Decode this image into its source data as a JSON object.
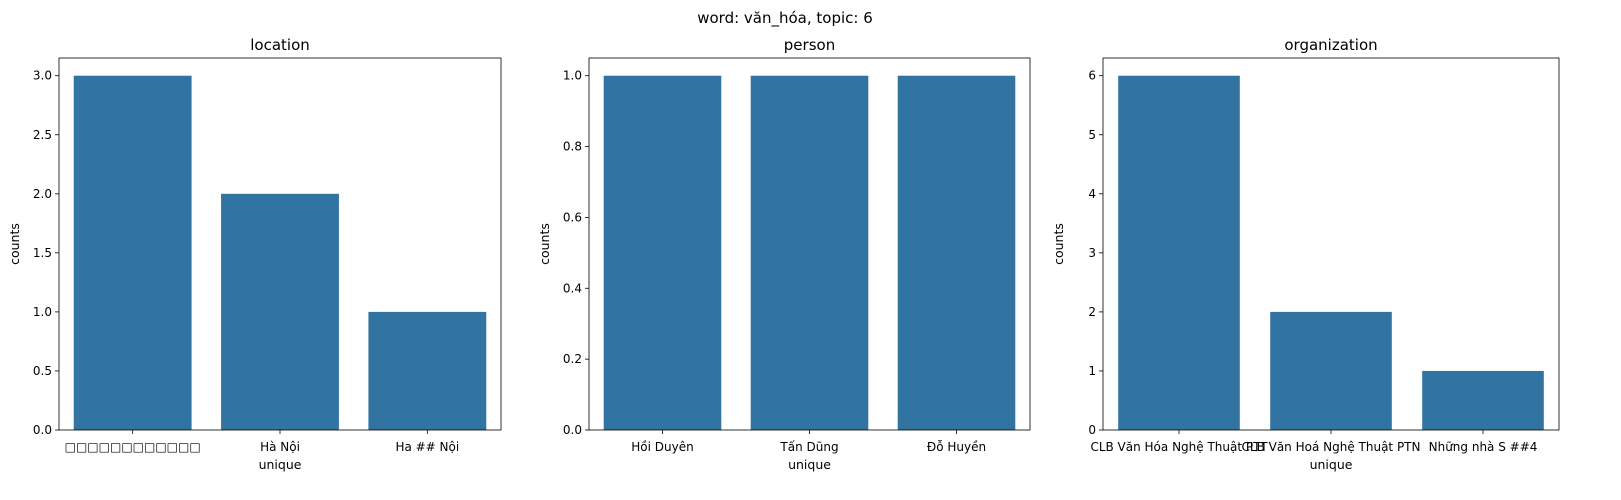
{
  "suptitle": "word: văn_hóa, topic: 6",
  "chart_data": [
    {
      "type": "bar",
      "title": "location",
      "xlabel": "unique",
      "ylabel": "counts",
      "categories": [
        "□□□□□□□□□□□□",
        "Hà Nội",
        "Ha ## Nội"
      ],
      "values": [
        3,
        2,
        1
      ],
      "ylim": [
        0,
        3.15
      ],
      "yticks": [
        "0.0",
        "0.5",
        "1.0",
        "1.5",
        "2.0",
        "2.5",
        "3.0"
      ],
      "ytick_values": [
        0,
        0.5,
        1,
        1.5,
        2,
        2.5,
        3
      ],
      "bar_color": "#3274a1"
    },
    {
      "type": "bar",
      "title": "person",
      "xlabel": "unique",
      "ylabel": "counts",
      "categories": [
        "Hồi Duyên",
        "Tấn Dũng",
        "Đỗ Huyền"
      ],
      "values": [
        1,
        1,
        1
      ],
      "ylim": [
        0,
        1.05
      ],
      "yticks": [
        "0.0",
        "0.2",
        "0.4",
        "0.6",
        "0.8",
        "1.0"
      ],
      "ytick_values": [
        0,
        0.2,
        0.4,
        0.6,
        0.8,
        1.0
      ],
      "bar_color": "#3274a1"
    },
    {
      "type": "bar",
      "title": "organization",
      "xlabel": "unique",
      "ylabel": "counts",
      "categories": [
        "CLB Văn Hóa Nghệ Thuật PTT",
        "CLB Văn Hoá Nghệ Thuật PTN",
        "Những nhà S ##4"
      ],
      "values": [
        6,
        2,
        1
      ],
      "ylim": [
        0,
        6.3
      ],
      "yticks": [
        "0",
        "1",
        "2",
        "3",
        "4",
        "5",
        "6"
      ],
      "ytick_values": [
        0,
        1,
        2,
        3,
        4,
        5,
        6
      ],
      "bar_color": "#3274a1"
    }
  ]
}
